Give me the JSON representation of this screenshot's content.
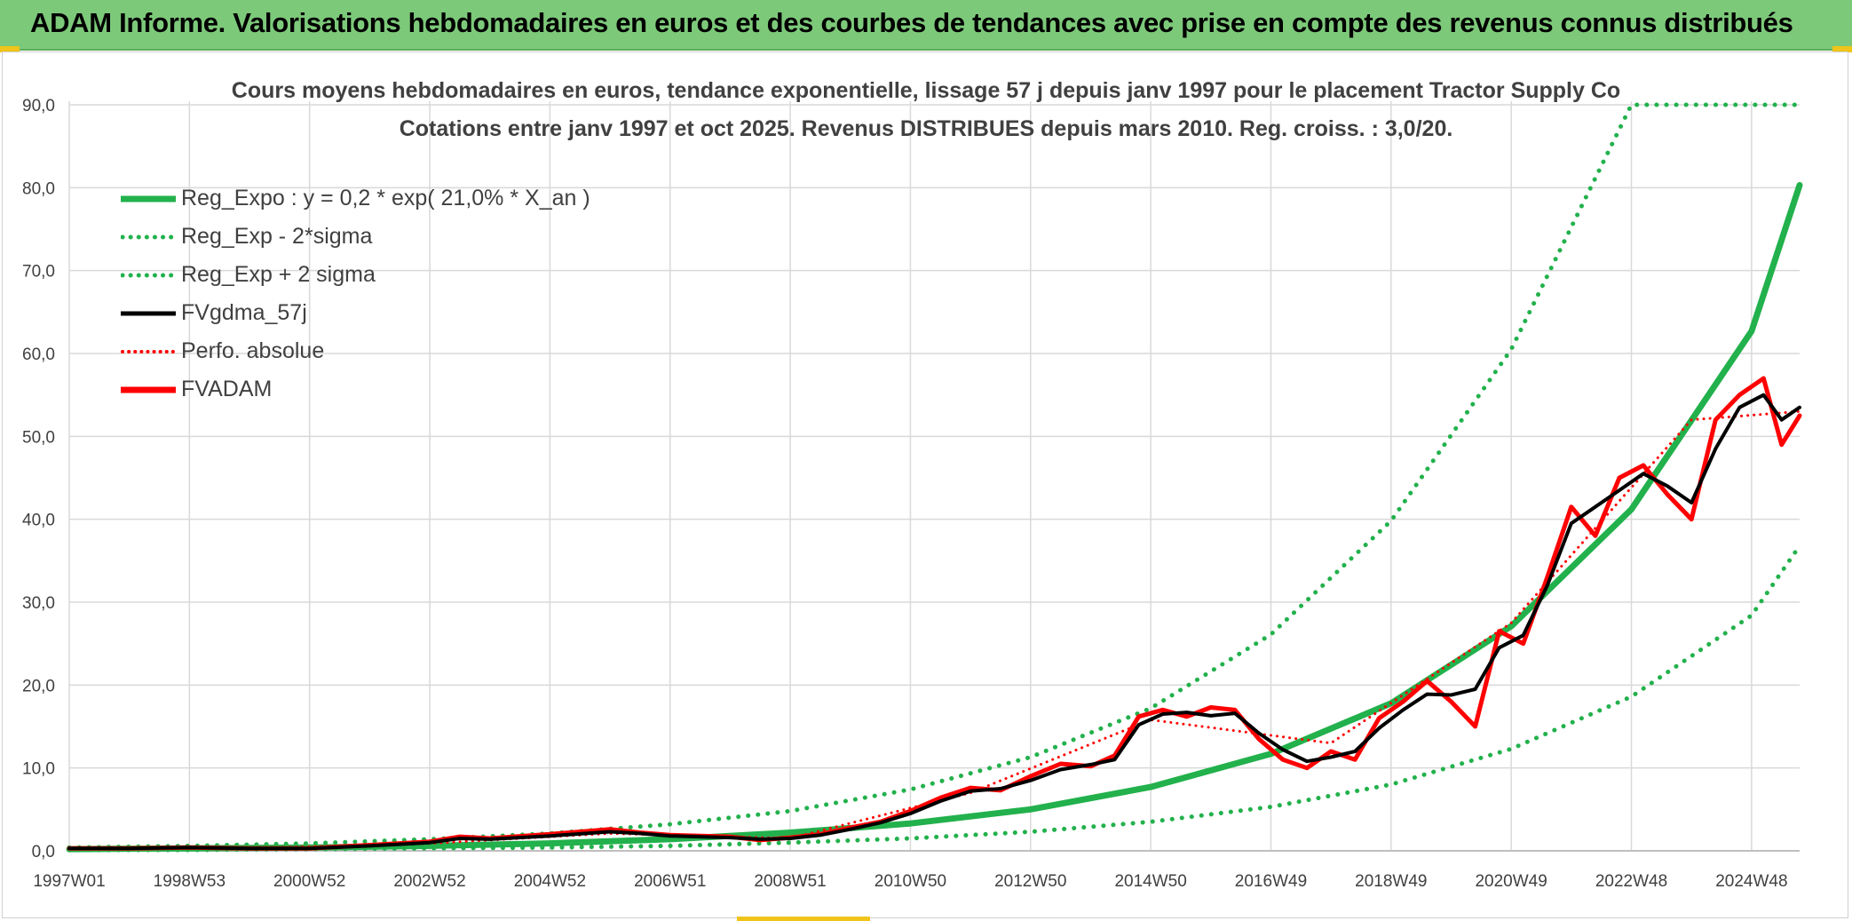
{
  "banner": {
    "title": "ADAM Informe. Valorisations hebdomadaires en euros et des courbes de tendances avec prise en compte des revenus connus distribués"
  },
  "chart_data": {
    "type": "line",
    "title": "Cours moyens hebdomadaires en euros, tendance exponentielle, lissage 57 j depuis janv 1997 pour le placement Tractor Supply Co",
    "subtitle": "Cotations entre janv 1997 et oct 2025. Revenus DISTRIBUES depuis mars 2010. Reg. croiss. : 3,0/20.",
    "xlabel": "",
    "ylabel": "",
    "ylim": [
      0,
      90
    ],
    "y_ticks": [
      "0,0",
      "10,0",
      "20,0",
      "30,0",
      "40,0",
      "50,0",
      "60,0",
      "70,0",
      "80,0",
      "90,0"
    ],
    "x_ticks": [
      "1997W01",
      "1998W53",
      "2000W52",
      "2002W52",
      "2004W52",
      "2006W51",
      "2008W51",
      "2010W50",
      "2012W50",
      "2014W50",
      "2016W49",
      "2018W49",
      "2020W49",
      "2022W48",
      "2024W48"
    ],
    "x_tick_years": [
      1997.0,
      1999.0,
      2001.0,
      2003.0,
      2005.0,
      2007.0,
      2009.0,
      2011.0,
      2013.0,
      2015.0,
      2017.0,
      2019.0,
      2021.0,
      2023.0,
      2025.0
    ],
    "x_range": [
      1997.0,
      2025.8
    ],
    "grid": true,
    "legend_position": "top-left",
    "legend": [
      {
        "label": "Reg_Expo : y = 0,2 * exp( 21,0% *  X_an )",
        "color": "#22b14c",
        "style": "solid"
      },
      {
        "label": "Reg_Exp - 2*sigma",
        "color": "#22b14c",
        "style": "dotted"
      },
      {
        "label": "Reg_Exp + 2 sigma",
        "color": "#22b14c",
        "style": "dotted"
      },
      {
        "label": "FVgdma_57j",
        "color": "#000000",
        "style": "solid"
      },
      {
        "label": "Perfo. absolue",
        "color": "#ff0000",
        "style": "dotted"
      },
      {
        "label": "FVADAM",
        "color": "#ff0000",
        "style": "solid"
      }
    ],
    "series": [
      {
        "name": "Reg_Expo",
        "x": [
          1997,
          1999,
          2001,
          2003,
          2005,
          2007,
          2009,
          2011,
          2013,
          2015,
          2017,
          2019,
          2021,
          2023,
          2025,
          2025.8
        ],
        "values": [
          0.2,
          0.3,
          0.4,
          0.6,
          0.9,
          1.4,
          2.2,
          3.3,
          5.0,
          7.7,
          11.7,
          17.8,
          27.1,
          41.2,
          62.7,
          80.3
        ]
      },
      {
        "name": "Reg_Exp - 2*sigma",
        "x": [
          1997,
          1999,
          2001,
          2003,
          2005,
          2007,
          2009,
          2011,
          2013,
          2015,
          2017,
          2019,
          2021,
          2023,
          2025,
          2025.8
        ],
        "values": [
          0.1,
          0.1,
          0.2,
          0.3,
          0.4,
          0.6,
          1.0,
          1.5,
          2.3,
          3.5,
          5.3,
          8.0,
          12.3,
          18.6,
          28.4,
          36.8
        ]
      },
      {
        "name": "Reg_Exp + 2 sigma",
        "x": [
          1997,
          1999,
          2001,
          2003,
          2005,
          2007,
          2009,
          2011,
          2013,
          2015,
          2017,
          2019,
          2021,
          2023,
          2025,
          2025.8
        ],
        "values": [
          0.4,
          0.6,
          0.9,
          1.4,
          2.1,
          3.2,
          4.8,
          7.4,
          11.3,
          17.2,
          26.1,
          39.8,
          60.5,
          90.0,
          90.0,
          90.0
        ]
      },
      {
        "name": "FVgdma_57j",
        "x": [
          1997,
          1998,
          1999,
          2000,
          2001,
          2002,
          2003,
          2003.5,
          2004,
          2005,
          2006,
          2006.5,
          2007,
          2008,
          2008.5,
          2009,
          2009.5,
          2010,
          2010.5,
          2011,
          2011.5,
          2012,
          2012.5,
          2013,
          2013.5,
          2014,
          2014.4,
          2014.8,
          2015.2,
          2015.6,
          2016,
          2016.4,
          2016.8,
          2017.2,
          2017.6,
          2018,
          2018.4,
          2018.8,
          2019.2,
          2019.6,
          2020,
          2020.4,
          2020.8,
          2021.2,
          2021.6,
          2022,
          2022.4,
          2022.8,
          2023.2,
          2023.6,
          2024,
          2024.4,
          2024.8,
          2025.2,
          2025.5,
          2025.8
        ],
        "values": [
          0.3,
          0.3,
          0.4,
          0.3,
          0.3,
          0.6,
          1.0,
          1.5,
          1.4,
          1.8,
          2.3,
          2.1,
          1.8,
          1.6,
          1.4,
          1.5,
          1.9,
          2.6,
          3.4,
          4.5,
          6.0,
          7.2,
          7.5,
          8.5,
          9.8,
          10.4,
          11.0,
          15.2,
          16.5,
          16.7,
          16.3,
          16.6,
          14.2,
          12.2,
          10.8,
          11.3,
          12.0,
          14.8,
          17.0,
          18.9,
          18.8,
          19.5,
          24.5,
          26.0,
          32.0,
          39.5,
          41.5,
          43.5,
          45.5,
          44.0,
          42.0,
          48.5,
          53.5,
          55.0,
          52.0,
          53.5
        ]
      },
      {
        "name": "Perfo. absolue",
        "x": [
          1997,
          2000,
          2003,
          2006,
          2009,
          2012,
          2015,
          2018,
          2021,
          2024,
          2025.8
        ],
        "values": [
          0.3,
          0.3,
          0.9,
          2.1,
          1.5,
          7.0,
          15.8,
          13.0,
          27.5,
          52.0,
          53.0
        ]
      },
      {
        "name": "FVADAM",
        "x": [
          1997,
          1998,
          1999,
          2000,
          2001,
          2002,
          2003,
          2003.5,
          2004,
          2005,
          2006,
          2006.5,
          2007,
          2008,
          2008.5,
          2009,
          2009.5,
          2010,
          2010.5,
          2011,
          2011.5,
          2012,
          2012.5,
          2013,
          2013.5,
          2014,
          2014.4,
          2014.8,
          2015.2,
          2015.6,
          2016,
          2016.4,
          2016.8,
          2017.2,
          2017.6,
          2018,
          2018.4,
          2018.8,
          2019.2,
          2019.6,
          2020,
          2020.4,
          2020.8,
          2021.2,
          2021.6,
          2022,
          2022.4,
          2022.8,
          2023.2,
          2023.6,
          2024,
          2024.4,
          2024.8,
          2025.2,
          2025.5,
          2025.8
        ],
        "values": [
          0.3,
          0.3,
          0.4,
          0.3,
          0.3,
          0.7,
          1.1,
          1.7,
          1.5,
          2.0,
          2.6,
          2.2,
          1.9,
          1.7,
          1.3,
          1.6,
          2.0,
          2.8,
          3.5,
          4.8,
          6.4,
          7.6,
          7.3,
          9.0,
          10.5,
          10.2,
          11.5,
          16.2,
          17.0,
          16.2,
          17.3,
          17.0,
          13.5,
          11.0,
          10.0,
          12.0,
          11.0,
          16.0,
          18.0,
          20.5,
          18.0,
          15.0,
          26.5,
          25.0,
          33.0,
          41.5,
          38.0,
          45.0,
          46.5,
          43.0,
          40.0,
          52.0,
          55.0,
          57.0,
          49.0,
          52.5
        ]
      }
    ]
  }
}
